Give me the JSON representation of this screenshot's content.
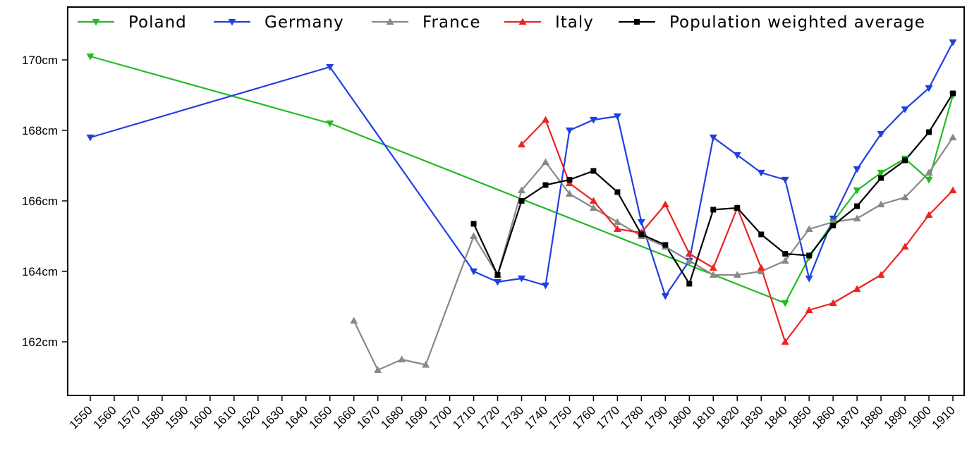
{
  "chart_data": {
    "type": "line",
    "title": "",
    "xlabel": "",
    "ylabel": "",
    "xlim": [
      1550,
      1910
    ],
    "ylim": [
      160.5,
      171.5
    ],
    "x_ticks": [
      1550,
      1560,
      1570,
      1580,
      1590,
      1600,
      1610,
      1620,
      1630,
      1640,
      1650,
      1660,
      1670,
      1680,
      1690,
      1700,
      1710,
      1720,
      1730,
      1740,
      1750,
      1760,
      1770,
      1780,
      1790,
      1800,
      1810,
      1820,
      1830,
      1840,
      1850,
      1860,
      1870,
      1880,
      1890,
      1900,
      1910
    ],
    "y_ticks": [
      162,
      164,
      166,
      168,
      170
    ],
    "y_tick_labels": [
      "162cm",
      "164cm",
      "166cm",
      "168cm",
      "170cm"
    ],
    "grid": false,
    "legend_position": "top",
    "series": [
      {
        "name": "Poland",
        "color": "#22bb22",
        "marker": "triangle-down",
        "x": [
          1550,
          1650,
          1840,
          1850,
          1860,
          1870,
          1880,
          1890,
          1900,
          1910
        ],
        "y": [
          170.1,
          168.2,
          163.1,
          164.4,
          165.4,
          166.3,
          166.8,
          167.2,
          166.6,
          169.0
        ]
      },
      {
        "name": "Germany",
        "color": "#1f3fe0",
        "marker": "triangle-down",
        "x": [
          1550,
          1650,
          1710,
          1720,
          1730,
          1740,
          1750,
          1760,
          1770,
          1780,
          1790,
          1800,
          1810,
          1820,
          1830,
          1840,
          1850,
          1860,
          1870,
          1880,
          1890,
          1900,
          1910
        ],
        "y": [
          167.8,
          169.8,
          164.0,
          163.7,
          163.8,
          163.6,
          168.0,
          168.3,
          168.4,
          165.4,
          163.3,
          164.3,
          167.8,
          167.3,
          166.8,
          166.6,
          163.8,
          165.5,
          166.9,
          167.9,
          168.6,
          169.2,
          170.5
        ]
      },
      {
        "name": "France",
        "color": "#888888",
        "marker": "triangle-up",
        "x": [
          1660,
          1670,
          1680,
          1690,
          1710,
          1720,
          1730,
          1740,
          1750,
          1760,
          1770,
          1780,
          1790,
          1800,
          1810,
          1820,
          1830,
          1840,
          1850,
          1860,
          1870,
          1880,
          1890,
          1900,
          1910
        ],
        "y": [
          162.6,
          161.2,
          161.5,
          161.35,
          165.0,
          163.9,
          166.3,
          167.1,
          166.2,
          165.8,
          165.4,
          165.0,
          164.7,
          164.3,
          163.9,
          163.9,
          164.0,
          164.3,
          165.2,
          165.4,
          165.5,
          165.9,
          166.1,
          166.8,
          167.8
        ]
      },
      {
        "name": "Italy",
        "color": "#ee2222",
        "marker": "triangle-up",
        "x": [
          1730,
          1740,
          1750,
          1760,
          1770,
          1780,
          1790,
          1800,
          1810,
          1820,
          1830,
          1840,
          1850,
          1860,
          1870,
          1880,
          1890,
          1900,
          1910
        ],
        "y": [
          167.6,
          168.3,
          166.5,
          166.0,
          165.2,
          165.1,
          165.9,
          164.5,
          164.1,
          165.8,
          164.1,
          162.0,
          162.9,
          163.1,
          163.5,
          163.9,
          164.7,
          165.6,
          166.3
        ]
      },
      {
        "name": "Population weighted average",
        "color": "#000000",
        "marker": "square",
        "x": [
          1710,
          1720,
          1730,
          1740,
          1750,
          1760,
          1770,
          1780,
          1790,
          1800,
          1810,
          1820,
          1830,
          1840,
          1850,
          1860,
          1870,
          1880,
          1890,
          1900,
          1910
        ],
        "y": [
          165.35,
          163.9,
          166.0,
          166.45,
          166.6,
          166.85,
          166.25,
          165.05,
          164.75,
          163.65,
          165.75,
          165.8,
          165.05,
          164.5,
          164.45,
          165.3,
          165.85,
          166.65,
          167.15,
          167.95,
          169.05
        ]
      }
    ]
  }
}
